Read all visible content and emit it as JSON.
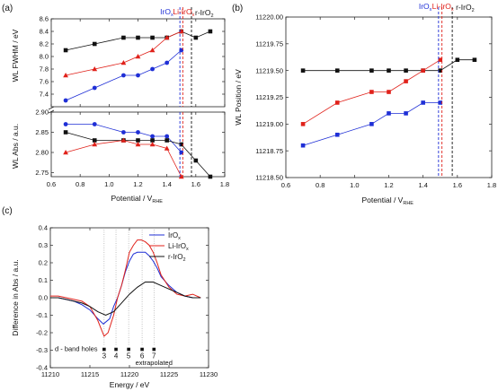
{
  "figure": {
    "panel_labels": [
      "(a)",
      "(b)",
      "(c)"
    ],
    "marker_labels": {
      "iro": "IrO",
      "iro_sub": "x",
      "li": "Li-IrO",
      "li_sub": "x",
      "r": "r-IrO",
      "r_sub": "2"
    },
    "colors": {
      "iro": "#1f2fd6",
      "li": "#e0211a",
      "r": "#111111",
      "axis": "#222222",
      "guide": "#9a9a9a"
    }
  },
  "chart_data": [
    {
      "panel": "(a) top",
      "type": "line",
      "ylabel": "WL FWHM / eV",
      "xlim": [
        0.6,
        1.8
      ],
      "ylim": [
        7.2,
        8.6
      ],
      "yticks": [
        "7.4",
        "7.6",
        "7.8",
        "8.0",
        "8.2",
        "8.4",
        "8.6"
      ],
      "vlines": [
        {
          "x": 1.49,
          "series": "IrOx"
        },
        {
          "x": 1.51,
          "series": "Li-IrOx"
        },
        {
          "x": 1.57,
          "series": "r-IrO2"
        }
      ],
      "series": [
        {
          "name": "r-IrO2",
          "marker": "square",
          "x": [
            0.7,
            0.9,
            1.1,
            1.2,
            1.3,
            1.4,
            1.5,
            1.6,
            1.7
          ],
          "y": [
            8.1,
            8.2,
            8.3,
            8.3,
            8.3,
            8.3,
            8.4,
            8.3,
            8.4
          ]
        },
        {
          "name": "Li-IrOx",
          "marker": "triangle",
          "x": [
            0.7,
            0.9,
            1.1,
            1.2,
            1.3,
            1.4,
            1.5
          ],
          "y": [
            7.7,
            7.8,
            7.9,
            8.0,
            8.1,
            8.3,
            8.4
          ]
        },
        {
          "name": "IrOx",
          "marker": "circle",
          "x": [
            0.7,
            0.9,
            1.1,
            1.2,
            1.3,
            1.4,
            1.5
          ],
          "y": [
            7.3,
            7.5,
            7.7,
            7.7,
            7.8,
            7.9,
            8.1
          ]
        }
      ]
    },
    {
      "panel": "(a) bottom",
      "type": "line",
      "ylabel": "WL Abs / a.u.",
      "xlabel": "Potential / V",
      "xlabel_sub": "RHE",
      "xlim": [
        0.6,
        1.8
      ],
      "ylim": [
        2.74,
        2.9
      ],
      "xticks": [
        "0.6",
        "0.8",
        "1.0",
        "1.2",
        "1.4",
        "1.6",
        "1.8"
      ],
      "yticks": [
        "2.75",
        "2.80",
        "2.85",
        "2.90"
      ],
      "series": [
        {
          "name": "IrOx",
          "marker": "circle",
          "x": [
            0.7,
            0.9,
            1.1,
            1.2,
            1.3,
            1.4,
            1.5
          ],
          "y": [
            2.87,
            2.87,
            2.85,
            2.85,
            2.84,
            2.84,
            2.8
          ]
        },
        {
          "name": "r-IrO2",
          "marker": "square",
          "x": [
            0.7,
            0.9,
            1.1,
            1.2,
            1.3,
            1.4,
            1.5,
            1.6,
            1.7
          ],
          "y": [
            2.85,
            2.83,
            2.83,
            2.83,
            2.83,
            2.83,
            2.82,
            2.78,
            2.74
          ]
        },
        {
          "name": "Li-IrOx",
          "marker": "triangle",
          "x": [
            0.7,
            0.9,
            1.1,
            1.2,
            1.3,
            1.4,
            1.5
          ],
          "y": [
            2.8,
            2.82,
            2.83,
            2.82,
            2.82,
            2.81,
            2.74
          ]
        }
      ]
    },
    {
      "panel": "(b)",
      "type": "line",
      "ylabel": "WL Position / eV",
      "xlabel": "Potential / V",
      "xlabel_sub": "RHE",
      "xlim": [
        0.6,
        1.8
      ],
      "ylim": [
        11218.5,
        11220.0
      ],
      "xticks": [
        "0.6",
        "0.8",
        "1.0",
        "1.2",
        "1.4",
        "1.6",
        "1.8"
      ],
      "yticks": [
        "11218.50",
        "11218.75",
        "11219.00",
        "11219.25",
        "11219.50",
        "11219.75",
        "11220.00"
      ],
      "vlines": [
        {
          "x": 1.49,
          "series": "IrOx"
        },
        {
          "x": 1.51,
          "series": "Li-IrOx"
        },
        {
          "x": 1.57,
          "series": "r-IrO2"
        }
      ],
      "series": [
        {
          "name": "r-IrO2",
          "marker": "square",
          "x": [
            0.7,
            0.9,
            1.1,
            1.2,
            1.3,
            1.4,
            1.5,
            1.6,
            1.7
          ],
          "y": [
            11219.5,
            11219.5,
            11219.5,
            11219.5,
            11219.5,
            11219.5,
            11219.5,
            11219.6,
            11219.6
          ]
        },
        {
          "name": "Li-IrOx",
          "marker": "square",
          "x": [
            0.7,
            0.9,
            1.1,
            1.2,
            1.3,
            1.4,
            1.5
          ],
          "y": [
            11219.0,
            11219.2,
            11219.3,
            11219.3,
            11219.4,
            11219.5,
            11219.6
          ]
        },
        {
          "name": "IrOx",
          "marker": "square",
          "x": [
            0.7,
            0.9,
            1.1,
            1.2,
            1.3,
            1.4,
            1.5
          ],
          "y": [
            11218.8,
            11218.9,
            11219.0,
            11219.1,
            11219.1,
            11219.2,
            11219.2
          ]
        }
      ]
    },
    {
      "panel": "(c)",
      "type": "line",
      "ylabel": "Difference in Abs / a.u.",
      "xlabel": "Energy / eV",
      "xlim": [
        11210,
        11230
      ],
      "ylim": [
        -0.4,
        0.4
      ],
      "xticks": [
        "11210",
        "11215",
        "11220",
        "11225",
        "11230"
      ],
      "yticks": [
        "-0.4",
        "-0.3",
        "-0.2",
        "-0.1",
        "0.0",
        "0.1",
        "0.2",
        "0.3",
        "0.4"
      ],
      "legend": {
        "placement": "top-right",
        "entries": [
          {
            "text": "IrO",
            "sub": "x",
            "series": "IrOx"
          },
          {
            "text": "Li-IrO",
            "sub": "x",
            "series": "Li-IrOx"
          },
          {
            "text": "r-IrO",
            "sub": "2",
            "series": "r-IrO2"
          }
        ]
      },
      "annotations": {
        "dband_label": "d - band holes",
        "numbers": [
          "3",
          "4",
          "5",
          "6",
          "7"
        ],
        "number_x": [
          11216.8,
          11218.3,
          11219.9,
          11221.6,
          11223.1
        ],
        "extrapolated": "extrapolated"
      },
      "series": [
        {
          "name": "IrOx",
          "x": [
            11210,
            11211,
            11212,
            11213,
            11214,
            11215,
            11216,
            11216.7,
            11217.5,
            11218,
            11218.5,
            11219,
            11219.5,
            11220,
            11220.5,
            11221,
            11221.5,
            11222,
            11222.5,
            11223,
            11223.5,
            11224,
            11225,
            11226,
            11227,
            11228,
            11229
          ],
          "y": [
            0.0,
            0.0,
            -0.01,
            -0.02,
            -0.04,
            -0.07,
            -0.12,
            -0.15,
            -0.12,
            -0.05,
            0.0,
            0.07,
            0.15,
            0.21,
            0.25,
            0.26,
            0.26,
            0.26,
            0.24,
            0.21,
            0.17,
            0.12,
            0.07,
            0.03,
            0.01,
            0.0,
            0.0
          ]
        },
        {
          "name": "Li-IrOx",
          "x": [
            11210,
            11211,
            11212,
            11213,
            11214,
            11215,
            11216,
            11216.8,
            11217.3,
            11218,
            11218.5,
            11219,
            11219.5,
            11220,
            11220.5,
            11221,
            11221.5,
            11222,
            11222.5,
            11223,
            11223.5,
            11224,
            11225,
            11226,
            11227,
            11228,
            11229
          ],
          "y": [
            0.01,
            0.01,
            0.0,
            -0.01,
            -0.02,
            -0.05,
            -0.13,
            -0.22,
            -0.2,
            -0.1,
            0.0,
            0.07,
            0.16,
            0.26,
            0.3,
            0.33,
            0.33,
            0.32,
            0.3,
            0.26,
            0.2,
            0.13,
            0.06,
            0.02,
            0.01,
            0.02,
            0.0
          ]
        },
        {
          "name": "r-IrO2",
          "x": [
            11210,
            11211,
            11212,
            11213,
            11214,
            11215,
            11216,
            11217,
            11218,
            11219,
            11220,
            11221,
            11222,
            11223,
            11224,
            11225,
            11226,
            11227,
            11228,
            11229
          ],
          "y": [
            0.0,
            0.0,
            -0.01,
            -0.02,
            -0.03,
            -0.05,
            -0.08,
            -0.1,
            -0.08,
            -0.03,
            0.02,
            0.06,
            0.09,
            0.09,
            0.07,
            0.05,
            0.03,
            0.01,
            0.0,
            0.0
          ]
        }
      ]
    }
  ]
}
